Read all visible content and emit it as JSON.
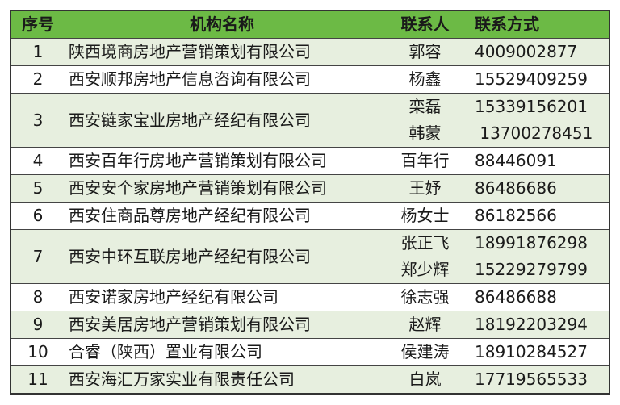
{
  "table": {
    "headers": [
      "序号",
      "机构名称",
      "联系人",
      "联系方式"
    ],
    "rows": [
      {
        "no": "1",
        "org": "陕西境商房地产营销策划有限公司",
        "persons": [
          "郭容"
        ],
        "phones": [
          "4009002877"
        ]
      },
      {
        "no": "2",
        "org": "西安顺邦房地产信息咨询有限公司",
        "persons": [
          "杨鑫"
        ],
        "phones": [
          "15529409259"
        ]
      },
      {
        "no": "3",
        "org": "西安链家宝业房地产经纪有限公司",
        "persons": [
          "栾磊",
          "韩蒙"
        ],
        "phones": [
          "15339156201",
          " 13700278451"
        ]
      },
      {
        "no": "4",
        "org": "西安百年行房地产营销策划有限公司",
        "persons": [
          "百年行"
        ],
        "phones": [
          "88446091"
        ]
      },
      {
        "no": "5",
        "org": "西安安个家房地产营销策划有限公司",
        "persons": [
          "王妤"
        ],
        "phones": [
          "86486686"
        ]
      },
      {
        "no": "6",
        "org": "西安住商品尊房地产经纪有限公司",
        "persons": [
          "杨女士"
        ],
        "phones": [
          "86182566"
        ]
      },
      {
        "no": "7",
        "org": "西安中环互联房地产经纪有限公司",
        "persons": [
          "张正飞",
          "郑少辉"
        ],
        "phones": [
          "18991876298",
          "15229279799"
        ]
      },
      {
        "no": "8",
        "org": "西安诺家房地产经纪有限公司",
        "persons": [
          "徐志强"
        ],
        "phones": [
          "86486688"
        ]
      },
      {
        "no": "9",
        "org": "西安美居房地产营销策划有限公司",
        "persons": [
          "赵辉"
        ],
        "phones": [
          "18192203294"
        ]
      },
      {
        "no": "10",
        "org": "合睿（陕西）置业有限公司",
        "persons": [
          "侯建涛"
        ],
        "phones": [
          "18910284527"
        ]
      },
      {
        "no": "11",
        "org": "西安海汇万家实业有限责任公司",
        "persons": [
          "白岚"
        ],
        "phones": [
          "17719565533"
        ]
      }
    ]
  },
  "colors": {
    "header_bg": "#6cba45",
    "stripe_bg": "#e7efdf",
    "plain_bg": "#ffffff"
  }
}
